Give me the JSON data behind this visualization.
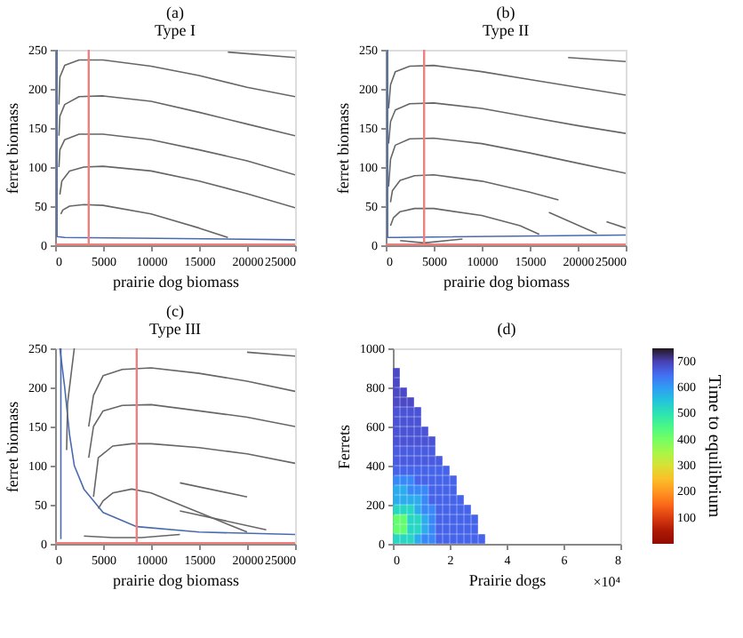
{
  "chart_data": [
    {
      "type": "line",
      "title": "(a)",
      "subtitle": "Type I",
      "xlabel": "prairie dog biomass",
      "ylabel": "ferret biomass",
      "xlim": [
        0,
        25000
      ],
      "ylim": [
        0,
        250
      ],
      "xticks": [
        0,
        5000,
        10000,
        15000,
        20000,
        25000
      ],
      "yticks": [
        0,
        50,
        100,
        150,
        200,
        250
      ],
      "grid": false,
      "legend": false,
      "marker": "none",
      "line_style": "solid",
      "ref_lines": [
        {
          "axis": "x",
          "value": 3500,
          "color": "#f08080"
        },
        {
          "axis": "y",
          "value": 1,
          "color": "#f08080"
        }
      ],
      "series": [
        {
          "color": "#4a6ab0",
          "x": [
            200,
            200,
            1000,
            25000
          ],
          "values": [
            250,
            11,
            10,
            7
          ]
        },
        {
          "color": "#666666",
          "x": [
            400,
            500,
            1000,
            2500,
            5000,
            10000,
            15000,
            20000,
            25000
          ],
          "values": [
            180,
            215,
            230,
            237,
            237,
            229,
            217,
            202,
            190
          ]
        },
        {
          "color": "#666666",
          "x": [
            400,
            500,
            1000,
            2500,
            5000,
            10000,
            15000,
            20000,
            25000
          ],
          "values": [
            140,
            165,
            180,
            190,
            191,
            184,
            170,
            155,
            140
          ]
        },
        {
          "color": "#666666",
          "x": [
            400,
            500,
            1000,
            2500,
            5000,
            10000,
            15000,
            20000,
            25000
          ],
          "values": [
            100,
            122,
            135,
            142,
            142,
            135,
            122,
            108,
            90
          ]
        },
        {
          "color": "#666666",
          "x": [
            500,
            700,
            1500,
            3000,
            5000,
            10000,
            15000,
            20000,
            25000
          ],
          "values": [
            65,
            82,
            95,
            100,
            101,
            95,
            82,
            66,
            48
          ]
        },
        {
          "color": "#666666",
          "x": [
            600,
            800,
            1500,
            3000,
            5000,
            10000,
            15000,
            18000
          ],
          "values": [
            40,
            45,
            50,
            52,
            51,
            40,
            22,
            10
          ]
        },
        {
          "color": "#666666",
          "x": [
            18000,
            25000
          ],
          "values": [
            247,
            240
          ]
        }
      ]
    },
    {
      "type": "line",
      "title": "(b)",
      "subtitle": "Type II",
      "xlabel": "prairie dog biomass",
      "ylabel": "ferret biomass",
      "xlim": [
        0,
        25000
      ],
      "ylim": [
        0,
        250
      ],
      "xticks": [
        0,
        5000,
        10000,
        15000,
        20000,
        25000
      ],
      "yticks": [
        0,
        50,
        100,
        150,
        200,
        250
      ],
      "grid": false,
      "legend": false,
      "marker": "none",
      "line_style": "solid",
      "ref_lines": [
        {
          "axis": "x",
          "value": 4000,
          "color": "#f08080"
        },
        {
          "axis": "y",
          "value": 1,
          "color": "#f08080"
        }
      ],
      "series": [
        {
          "color": "#4a6ab0",
          "x": [
            200,
            200,
            1000,
            25000
          ],
          "values": [
            250,
            10,
            10,
            13
          ]
        },
        {
          "color": "#666666",
          "x": [
            300,
            500,
            1000,
            2500,
            5000,
            10000,
            15000,
            20000,
            25000
          ],
          "values": [
            175,
            205,
            222,
            229,
            230,
            222,
            212,
            202,
            192
          ]
        },
        {
          "color": "#666666",
          "x": [
            300,
            500,
            1000,
            2500,
            5000,
            10000,
            15000,
            20000,
            25000
          ],
          "values": [
            130,
            158,
            173,
            181,
            182,
            175,
            164,
            153,
            143
          ]
        },
        {
          "color": "#666666",
          "x": [
            300,
            500,
            1000,
            2500,
            5000,
            10000,
            15000,
            20000,
            25000
          ],
          "values": [
            75,
            110,
            128,
            136,
            137,
            130,
            118,
            105,
            92
          ]
        },
        {
          "color": "#666666",
          "x": [
            500,
            700,
            1500,
            3000,
            5000,
            10000,
            15000,
            18000
          ],
          "values": [
            55,
            70,
            83,
            89,
            90,
            82,
            68,
            58
          ]
        },
        {
          "color": "#666666",
          "x": [
            500,
            800,
            1500,
            3000,
            5000,
            10000,
            14000,
            16000
          ],
          "values": [
            25,
            35,
            43,
            47,
            47,
            38,
            25,
            14
          ]
        },
        {
          "color": "#666666",
          "x": [
            17000,
            22000
          ],
          "values": [
            42,
            15
          ]
        },
        {
          "color": "#666666",
          "x": [
            23000,
            25000
          ],
          "values": [
            30,
            22
          ]
        },
        {
          "color": "#666666",
          "x": [
            19000,
            25000
          ],
          "values": [
            240,
            235
          ]
        },
        {
          "color": "#666666",
          "x": [
            1500,
            4000,
            8000
          ],
          "values": [
            6,
            3,
            8
          ]
        }
      ]
    },
    {
      "type": "line",
      "title": "(c)",
      "subtitle": "Type III",
      "xlabel": "prairie dog biomass",
      "ylabel": "ferret biomass",
      "xlim": [
        0,
        25000
      ],
      "ylim": [
        0,
        250
      ],
      "xticks": [
        0,
        5000,
        10000,
        15000,
        20000,
        25000
      ],
      "yticks": [
        0,
        50,
        100,
        150,
        200,
        250
      ],
      "grid": false,
      "legend": false,
      "marker": "none",
      "line_style": "solid",
      "ref_lines": [
        {
          "axis": "x",
          "value": 8500,
          "color": "#f08080"
        },
        {
          "axis": "y",
          "value": 1,
          "color": "#f08080"
        }
      ],
      "series": [
        {
          "color": "#4a6ab0",
          "x": [
            600,
            600
          ],
          "values": [
            250,
            6
          ]
        },
        {
          "color": "#4a6ab0",
          "x": [
            500,
            1000,
            1500,
            2000,
            3000,
            5000,
            8500,
            15000,
            25000
          ],
          "values": [
            250,
            200,
            140,
            100,
            70,
            40,
            22,
            15,
            12
          ]
        },
        {
          "color": "#666666",
          "x": [
            3500,
            4000,
            5000,
            7000,
            10000,
            15000,
            20000,
            25000
          ],
          "values": [
            150,
            190,
            215,
            223,
            225,
            218,
            208,
            195
          ]
        },
        {
          "color": "#666666",
          "x": [
            3500,
            4000,
            5000,
            7000,
            10000,
            15000,
            20000,
            25000
          ],
          "values": [
            110,
            150,
            170,
            177,
            178,
            170,
            162,
            150
          ]
        },
        {
          "color": "#666666",
          "x": [
            4000,
            4500,
            6000,
            8000,
            10000,
            15000,
            20000,
            25000
          ],
          "values": [
            60,
            110,
            125,
            128,
            128,
            123,
            115,
            103
          ]
        },
        {
          "color": "#666666",
          "x": [
            4500,
            5000,
            6000,
            8000,
            10000,
            15000,
            20000
          ],
          "values": [
            45,
            55,
            65,
            70,
            65,
            40,
            15
          ]
        },
        {
          "color": "#666666",
          "x": [
            13000,
            20000
          ],
          "values": [
            78,
            60
          ]
        },
        {
          "color": "#666666",
          "x": [
            13000,
            22000
          ],
          "values": [
            42,
            18
          ]
        },
        {
          "color": "#666666",
          "x": [
            20000,
            25000
          ],
          "values": [
            245,
            240
          ]
        },
        {
          "color": "#666666",
          "x": [
            2000,
            1700,
            1300,
            1200
          ],
          "values": [
            250,
            220,
            180,
            120
          ]
        },
        {
          "color": "#666666",
          "x": [
            3000,
            6000,
            9000,
            13000
          ],
          "values": [
            10,
            8,
            8,
            12
          ]
        }
      ]
    },
    {
      "type": "scatter",
      "title": "(d)",
      "xlabel": "Prairie dogs",
      "ylabel": "Ferrets",
      "clabel": "Time to equilibrium",
      "annotations": [
        "×10⁴"
      ],
      "xlim": [
        0,
        8
      ],
      "ylim": [
        0,
        1000
      ],
      "xticks": [
        0,
        2,
        4,
        6,
        8
      ],
      "yticks": [
        0,
        200,
        400,
        600,
        800,
        1000
      ],
      "clim": [
        0,
        750
      ],
      "cticks": [
        100,
        200,
        300,
        400,
        500,
        600,
        700
      ],
      "grid": false,
      "marker": "square",
      "x": [
        0.125,
        0.375,
        0.625,
        0.875,
        1.125,
        1.375,
        1.625,
        1.875,
        2.125,
        2.375,
        2.625,
        2.875,
        3.125,
        0.125,
        0.375,
        0.625,
        0.875,
        1.125,
        1.375,
        1.625,
        1.875,
        2.125,
        2.375,
        2.625,
        2.875,
        0.125,
        0.375,
        0.625,
        0.875,
        1.125,
        1.375,
        1.625,
        1.875,
        2.125,
        2.375,
        2.625,
        2.875,
        0.125,
        0.375,
        0.625,
        0.875,
        1.125,
        1.375,
        1.625,
        1.875,
        2.125,
        2.375,
        2.625,
        0.125,
        0.375,
        0.625,
        0.875,
        1.125,
        1.375,
        1.625,
        1.875,
        2.125,
        2.375,
        0.125,
        0.375,
        0.625,
        0.875,
        1.125,
        1.375,
        1.625,
        1.875,
        2.125,
        0.125,
        0.375,
        0.625,
        0.875,
        1.125,
        1.375,
        1.625,
        1.875,
        2.125,
        0.125,
        0.375,
        0.625,
        0.875,
        1.125,
        1.375,
        1.625,
        1.875,
        0.125,
        0.375,
        0.625,
        0.875,
        1.125,
        1.375,
        1.625,
        0.125,
        0.375,
        0.625,
        0.875,
        1.125,
        1.375,
        0.125,
        0.375,
        0.625,
        0.875,
        1.125,
        1.375,
        0.125,
        0.375,
        0.625,
        0.875,
        1.125,
        0.125,
        0.375,
        0.625,
        0.875,
        0.125,
        0.375,
        0.625,
        0.875,
        0.125,
        0.375,
        0.625,
        0.125,
        0.375,
        0.125,
        0.125
      ],
      "values": [
        25,
        25,
        25,
        25,
        25,
        25,
        25,
        25,
        25,
        25,
        25,
        25,
        25,
        75,
        75,
        75,
        75,
        75,
        75,
        75,
        75,
        75,
        75,
        75,
        75,
        125,
        125,
        125,
        125,
        125,
        125,
        125,
        125,
        125,
        125,
        125,
        125,
        175,
        175,
        175,
        175,
        175,
        175,
        175,
        175,
        175,
        175,
        175,
        225,
        225,
        225,
        225,
        225,
        225,
        225,
        225,
        225,
        225,
        275,
        275,
        275,
        275,
        275,
        275,
        275,
        275,
        275,
        325,
        325,
        325,
        325,
        325,
        325,
        325,
        325,
        325,
        375,
        375,
        375,
        375,
        375,
        375,
        375,
        375,
        425,
        425,
        425,
        425,
        425,
        425,
        425,
        475,
        475,
        475,
        475,
        475,
        475,
        525,
        525,
        525,
        525,
        525,
        525,
        575,
        575,
        575,
        575,
        575,
        625,
        625,
        625,
        625,
        675,
        675,
        675,
        675,
        725,
        725,
        725,
        775,
        775,
        825,
        875
      ],
      "cvalues": [
        520,
        520,
        520,
        580,
        620,
        620,
        660,
        660,
        660,
        660,
        660,
        660,
        660,
        420,
        420,
        520,
        520,
        580,
        620,
        660,
        660,
        660,
        660,
        660,
        660,
        420,
        420,
        520,
        520,
        580,
        620,
        660,
        660,
        660,
        660,
        660,
        660,
        520,
        520,
        520,
        580,
        620,
        620,
        660,
        660,
        660,
        660,
        660,
        580,
        580,
        580,
        580,
        620,
        660,
        660,
        660,
        660,
        660,
        580,
        580,
        620,
        620,
        620,
        660,
        660,
        660,
        660,
        620,
        620,
        620,
        660,
        660,
        660,
        660,
        660,
        660,
        660,
        660,
        660,
        660,
        660,
        660,
        660,
        660,
        670,
        670,
        670,
        670,
        670,
        670,
        670,
        670,
        670,
        670,
        670,
        670,
        670,
        680,
        680,
        680,
        680,
        680,
        680,
        680,
        680,
        680,
        680,
        680,
        680,
        680,
        680,
        680,
        680,
        680,
        680,
        680,
        690,
        690,
        690,
        690,
        690,
        690,
        690
      ]
    }
  ]
}
